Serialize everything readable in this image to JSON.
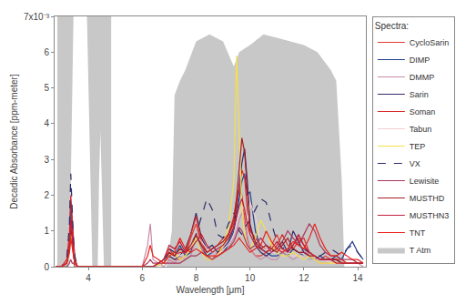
{
  "chart_data": {
    "type": "line",
    "x_label": "Wavelength [μm]",
    "y_label": "Decadic Absorbance [ppm-meter]",
    "legend_title": "Spectra:",
    "legend": "right",
    "grid": false,
    "xlim": [
      2.75,
      14.3
    ],
    "xticks": [
      4,
      6,
      8,
      10,
      12,
      14
    ],
    "ylim": [
      0,
      0.007
    ],
    "yticks": [
      0,
      {
        "value": 0.001,
        "label": "1"
      },
      {
        "value": 0.002,
        "label": "2"
      },
      {
        "value": 0.003,
        "label": "3"
      },
      {
        "value": 0.004,
        "label": "4"
      },
      {
        "value": 0.005,
        "label": "5"
      },
      {
        "value": 0.006,
        "label": "6"
      },
      {
        "value": 0.007,
        "label": "7x10⁻³"
      }
    ],
    "x": [
      2.8,
      3.0,
      3.2,
      3.3,
      3.35,
      3.4,
      3.45,
      3.5,
      3.6,
      4.0,
      5.0,
      6.0,
      6.2,
      6.3,
      6.4,
      6.8,
      7.0,
      7.2,
      7.4,
      7.6,
      7.8,
      8.0,
      8.2,
      8.4,
      8.6,
      8.8,
      9.0,
      9.2,
      9.4,
      9.5,
      9.6,
      9.7,
      9.8,
      9.9,
      10.0,
      10.2,
      10.4,
      10.6,
      10.8,
      11.0,
      11.2,
      11.4,
      11.6,
      11.8,
      12.0,
      12.2,
      12.4,
      12.6,
      12.8,
      13.0,
      13.2,
      13.4,
      13.6,
      13.8,
      14.0,
      14.2
    ],
    "series": [
      {
        "name": "CycloSarin",
        "color": "#e03c31",
        "values": [
          0,
          0,
          0.0001,
          0.0006,
          0.0015,
          0.001,
          0.0004,
          0.0002,
          0,
          0,
          0,
          0,
          0,
          0,
          0,
          0.0001,
          0.0003,
          0.0002,
          0.0002,
          0.0003,
          0.0008,
          0.0012,
          0.0006,
          0.0003,
          0.0002,
          0.0004,
          0.0006,
          0.0009,
          0.0014,
          0.0019,
          0.0022,
          0.002,
          0.0014,
          0.0008,
          0.0005,
          0.0003,
          0.0003,
          0.0004,
          0.0006,
          0.0009,
          0.0005,
          0.0004,
          0.0006,
          0.0008,
          0.0006,
          0.0003,
          0.0002,
          0.0002,
          0.0003,
          0.0002,
          0.0002,
          0.0001,
          0.0001,
          0.0001,
          0.0001,
          0.0001
        ]
      },
      {
        "name": "DIMP",
        "color": "#1f3f8f",
        "values": [
          0,
          0,
          0.0001,
          0.0007,
          0.0018,
          0.0012,
          0.0005,
          0.0002,
          0,
          0,
          0,
          0,
          0,
          0,
          0,
          0.0001,
          0.0004,
          0.0003,
          0.0006,
          0.0003,
          0.0004,
          0.0009,
          0.0005,
          0.0003,
          0.0004,
          0.0003,
          0.0004,
          0.0006,
          0.001,
          0.0014,
          0.0019,
          0.0024,
          0.0026,
          0.002,
          0.0021,
          0.001,
          0.0005,
          0.0004,
          0.0003,
          0.0003,
          0.0004,
          0.0003,
          0.0005,
          0.0004,
          0.0003,
          0.0002,
          0.0002,
          0.0003,
          0.0002,
          0.0002,
          0.0003,
          0.0002,
          0.0005,
          0.0007,
          0.0004,
          0.0002
        ]
      },
      {
        "name": "DMMP",
        "color": "#c98aa8",
        "values": [
          0,
          0,
          0.0001,
          0.0004,
          0.0009,
          0.0007,
          0.0003,
          0.0001,
          0,
          0,
          0,
          0,
          0.0006,
          0.0012,
          0.0002,
          0,
          0.0002,
          0.0001,
          0.0003,
          0.0002,
          0.0003,
          0.0008,
          0.0005,
          0.0002,
          0.0002,
          0.0003,
          0.0004,
          0.0005,
          0.0008,
          0.001,
          0.0013,
          0.0015,
          0.0012,
          0.0008,
          0.0005,
          0.0003,
          0.0002,
          0.0003,
          0.0002,
          0.0002,
          0.0004,
          0.0003,
          0.0002,
          0.0003,
          0.0005,
          0.0003,
          0.0002,
          0.0001,
          0.0001,
          0.0001,
          0.0001,
          0.0001,
          0.0001,
          0.0001,
          0.0001,
          0
        ]
      },
      {
        "name": "Sarin",
        "color": "#3a2a6a",
        "values": [
          0,
          0,
          0.0001,
          0.0005,
          0.0013,
          0.0009,
          0.0003,
          0.0001,
          0,
          0,
          0,
          0,
          0,
          0,
          0,
          0.0001,
          0.0003,
          0.0002,
          0.0003,
          0.0005,
          0.0009,
          0.0015,
          0.0008,
          0.0005,
          0.0006,
          0.0004,
          0.0005,
          0.0007,
          0.0011,
          0.0016,
          0.0023,
          0.0029,
          0.0033,
          0.0024,
          0.0012,
          0.0006,
          0.0004,
          0.0003,
          0.0004,
          0.0005,
          0.0007,
          0.0004,
          0.001,
          0.0007,
          0.0004,
          0.0003,
          0.0002,
          0.0002,
          0.0002,
          0.0002,
          0.0002,
          0.0001,
          0.0001,
          0.0001,
          0.0001,
          0.0001
        ]
      },
      {
        "name": "Soman",
        "color": "#d92b2b",
        "values": [
          0,
          0,
          0.0002,
          0.0009,
          0.002,
          0.0014,
          0.0006,
          0.0002,
          0,
          0,
          0,
          0,
          0,
          0,
          0,
          0.0002,
          0.0005,
          0.0003,
          0.0004,
          0.0004,
          0.0009,
          0.0014,
          0.0007,
          0.0004,
          0.0005,
          0.0006,
          0.0008,
          0.0009,
          0.0012,
          0.0017,
          0.0023,
          0.0027,
          0.0025,
          0.0016,
          0.001,
          0.0008,
          0.0006,
          0.0005,
          0.0004,
          0.0006,
          0.0009,
          0.0006,
          0.0005,
          0.0007,
          0.0008,
          0.0004,
          0.0003,
          0.0002,
          0.0002,
          0.0002,
          0.0002,
          0.0002,
          0.0001,
          0.0001,
          0.0001,
          0.0001
        ]
      },
      {
        "name": "Tabun",
        "color": "#f0cfcf",
        "values": [
          0,
          0,
          0.0001,
          0.0005,
          0.0011,
          0.0008,
          0.0003,
          0.0001,
          0,
          0,
          0,
          0,
          0,
          0,
          0,
          0.0001,
          0.0003,
          0.0004,
          0.0003,
          0.0004,
          0.0006,
          0.0009,
          0.0007,
          0.0005,
          0.0004,
          0.0003,
          0.0005,
          0.0006,
          0.0009,
          0.0012,
          0.0015,
          0.0017,
          0.0016,
          0.0012,
          0.0018,
          0.0014,
          0.0007,
          0.0005,
          0.0004,
          0.0004,
          0.0005,
          0.0004,
          0.0003,
          0.0003,
          0.0003,
          0.0002,
          0.0002,
          0.0002,
          0.0002,
          0.0001,
          0.0001,
          0.0001,
          0.0001,
          0.0001,
          0.0001,
          0.0001
        ]
      },
      {
        "name": "TEP",
        "color": "#f5e04a",
        "values": [
          0,
          0,
          0.0001,
          0.0004,
          0.001,
          0.0007,
          0.0003,
          0.0001,
          0,
          0,
          0,
          0,
          0,
          0,
          0,
          0.0001,
          0.0003,
          0.0004,
          0.0002,
          0.0003,
          0.0005,
          0.0008,
          0.0004,
          0.0002,
          0.0002,
          0.0003,
          0.0006,
          0.0011,
          0.0024,
          0.0059,
          0.0036,
          0.0016,
          0.0009,
          0.0006,
          0.0005,
          0.0008,
          0.0013,
          0.001,
          0.0006,
          0.0004,
          0.0003,
          0.0003,
          0.0004,
          0.0003,
          0.0002,
          0.0003,
          0.0002,
          0.0001,
          0.0001,
          0.0001,
          0.0001,
          0.0001,
          0.0001,
          0.0001,
          0.0001,
          0.0001
        ]
      },
      {
        "name": "VX",
        "color": "#2c2c6c",
        "line_style": "dashed",
        "values": [
          0,
          0,
          0.0002,
          0.0012,
          0.0026,
          0.0016,
          0.0007,
          0.0003,
          0,
          0,
          0,
          0,
          0,
          0,
          0,
          0.0002,
          0.0005,
          0.0004,
          0.0003,
          0.0004,
          0.0006,
          0.0009,
          0.0014,
          0.0019,
          0.0016,
          0.0009,
          0.0008,
          0.0012,
          0.0015,
          0.0013,
          0.001,
          0.0009,
          0.0011,
          0.0012,
          0.0013,
          0.0016,
          0.0019,
          0.0018,
          0.0012,
          0.0007,
          0.0005,
          0.0006,
          0.0005,
          0.0004,
          0.0005,
          0.0004,
          0.0003,
          0.0003,
          0.0004,
          0.0005,
          0.0004,
          0.0003,
          0.0005,
          0.0006,
          0.0004,
          0.0002
        ]
      },
      {
        "name": "Lewisite",
        "color": "#a8385a",
        "values": [
          0,
          0,
          0,
          0.0001,
          0.0002,
          0.0001,
          0.0001,
          0,
          0,
          0,
          0,
          0,
          0.0001,
          0.0002,
          0.0001,
          0.0001,
          0.0001,
          0.0001,
          0.0001,
          0.0002,
          0.0003,
          0.0003,
          0.0004,
          0.0003,
          0.0002,
          0.0003,
          0.0004,
          0.0005,
          0.0007,
          0.0009,
          0.0011,
          0.001,
          0.0008,
          0.0006,
          0.0005,
          0.0006,
          0.0008,
          0.0006,
          0.0004,
          0.0005,
          0.0007,
          0.001,
          0.0008,
          0.0006,
          0.0009,
          0.0012,
          0.001,
          0.0006,
          0.0004,
          0.0003,
          0.0003,
          0.0002,
          0.0002,
          0.0002,
          0.0001,
          0.0001
        ]
      },
      {
        "name": "MUSTHD",
        "color": "#a51e22",
        "values": [
          0,
          0,
          0.0001,
          0.0005,
          0.0011,
          0.0008,
          0.0003,
          0.0001,
          0,
          0,
          0,
          0,
          0,
          0,
          0,
          0.0002,
          0.0004,
          0.0003,
          0.0005,
          0.0004,
          0.0006,
          0.0009,
          0.0006,
          0.0004,
          0.0005,
          0.0006,
          0.0007,
          0.0009,
          0.0013,
          0.0019,
          0.0028,
          0.0036,
          0.0032,
          0.002,
          0.0011,
          0.0007,
          0.0005,
          0.0006,
          0.0005,
          0.0004,
          0.0006,
          0.0008,
          0.0005,
          0.0004,
          0.0004,
          0.0003,
          0.0003,
          0.0002,
          0.0002,
          0.0002,
          0.0002,
          0.0001,
          0.0001,
          0.0001,
          0.0001,
          0.0001
        ]
      },
      {
        "name": "MUSTHN3",
        "color": "#c0203c",
        "values": [
          0,
          0,
          0.0001,
          0.0006,
          0.0013,
          0.001,
          0.0004,
          0.0001,
          0,
          0,
          0,
          0,
          0,
          0,
          0,
          0.0002,
          0.0006,
          0.0005,
          0.0007,
          0.0004,
          0.0005,
          0.0007,
          0.0009,
          0.0006,
          0.0004,
          0.0005,
          0.0006,
          0.0008,
          0.0011,
          0.0014,
          0.0017,
          0.0019,
          0.0016,
          0.0012,
          0.0009,
          0.0006,
          0.0005,
          0.0004,
          0.0005,
          0.0007,
          0.0005,
          0.0004,
          0.0006,
          0.0009,
          0.0006,
          0.0004,
          0.0003,
          0.0002,
          0.0002,
          0.0002,
          0.0001,
          0.0001,
          0.0001,
          0.0001,
          0.0001,
          0.0001
        ]
      },
      {
        "name": "TNT",
        "color": "#e8231b",
        "values": [
          0,
          0,
          0.0001,
          0.0004,
          0.0008,
          0.0006,
          0.0003,
          0.0001,
          0,
          0,
          0,
          0,
          0.0003,
          0.0006,
          0.0003,
          0.0001,
          0.0003,
          0.0004,
          0.0008,
          0.0005,
          0.0004,
          0.0005,
          0.0004,
          0.0003,
          0.0003,
          0.0003,
          0.0004,
          0.0005,
          0.0006,
          0.0007,
          0.0008,
          0.0007,
          0.0006,
          0.0005,
          0.0004,
          0.0005,
          0.0006,
          0.001,
          0.0007,
          0.0005,
          0.0004,
          0.0005,
          0.0007,
          0.0006,
          0.0005,
          0.0008,
          0.0012,
          0.0008,
          0.0005,
          0.0003,
          0.0003,
          0.0004,
          0.0003,
          0.0002,
          0.0002,
          0.0001
        ]
      },
      {
        "name": "T Atm",
        "type": "area",
        "color": "#c8c8c8",
        "x": [
          2.85,
          2.85,
          3.45,
          3.4,
          3.35,
          3.3,
          null,
          4.15,
          4.1,
          4.0,
          3.95,
          4.85,
          4.85,
          4.58,
          4.5,
          4.45,
          4.4,
          4.35,
          null,
          6.9,
          7.1,
          7.2,
          7.4,
          7.6,
          7.8,
          8.0,
          8.5,
          9.0,
          9.4,
          9.6,
          10.0,
          10.5,
          11.0,
          11.5,
          12.0,
          12.5,
          13.0,
          13.2,
          13.4,
          13.5
        ],
        "values": [
          0,
          0.007,
          0.007,
          0.005,
          0.002,
          0,
          null,
          0,
          0.002,
          0.006,
          0.007,
          0.007,
          0,
          0,
          0.0025,
          0.0038,
          0.0025,
          0,
          null,
          0,
          0.001,
          0.0048,
          0.0052,
          0.0055,
          0.0059,
          0.0063,
          0.0065,
          0.0063,
          0.0056,
          0.006,
          0.0062,
          0.0065,
          0.0064,
          0.0063,
          0.0062,
          0.006,
          0.0055,
          0.0052,
          0.0025,
          0
        ]
      }
    ]
  }
}
